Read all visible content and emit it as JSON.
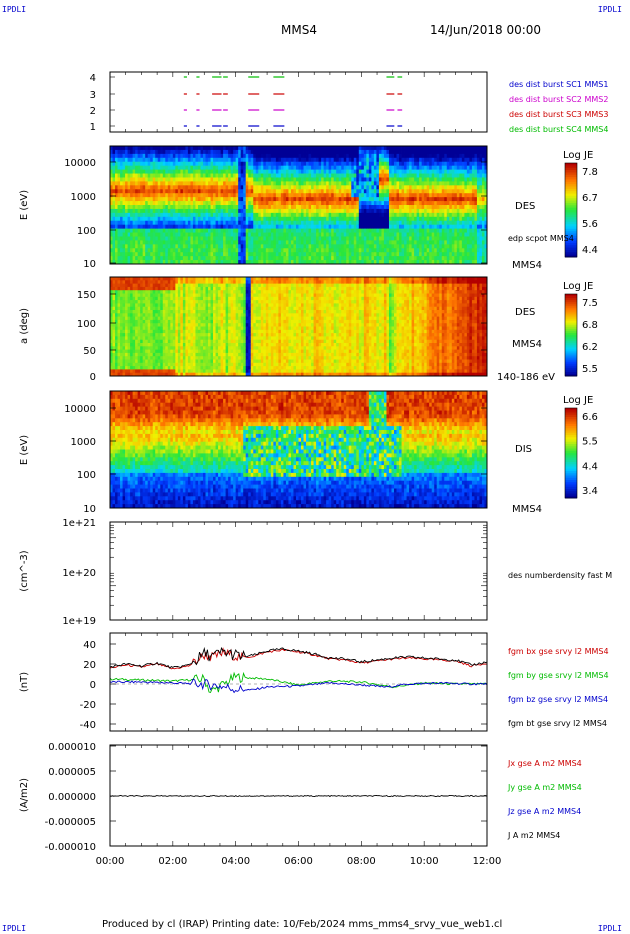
{
  "corner_label": "IPDLI",
  "header": {
    "spacecraft": "MMS4",
    "datetime": "14/Jun/2018 00:00"
  },
  "footer": "Produced by cl (IRAP)   Printing date: 10/Feb/2024   mms_mms4_srvy_vue_web1.cl",
  "time_axis": {
    "ticks": [
      "00:00",
      "02:00",
      "04:00",
      "06:00",
      "08:00",
      "10:00",
      "12:00"
    ],
    "hours": [
      0,
      2,
      4,
      6,
      8,
      10,
      12
    ]
  },
  "chart_data": [
    {
      "type": "table",
      "name": "burst availability",
      "yticks": [
        "4",
        "3",
        "2",
        "1"
      ],
      "series": [
        {
          "name": "des dist burst SC1 MMS1",
          "color": "#0000cc",
          "level": 1
        },
        {
          "name": "des dist burst SC2 MMS2",
          "color": "#cc00cc",
          "level": 2
        },
        {
          "name": "des dist burst SC3 MMS3",
          "color": "#cc0000",
          "level": 3
        },
        {
          "name": "des dist burst SC4 MMS4",
          "color": "#00bb00",
          "level": 4
        }
      ],
      "segments_hours": [
        [
          2.35,
          2.45
        ],
        [
          2.75,
          2.85
        ],
        [
          3.25,
          3.55
        ],
        [
          3.6,
          3.75
        ],
        [
          4.4,
          4.75
        ],
        [
          5.2,
          5.55
        ],
        [
          8.8,
          9.05
        ],
        [
          9.15,
          9.3
        ]
      ]
    },
    {
      "type": "heatmap",
      "name": "DES energy spectrogram",
      "ylabel": "E (eV)",
      "yticks": [
        "10000",
        "1000",
        "100",
        "10"
      ],
      "label_right": "DES",
      "overlay_label": "edp scpot MMS4",
      "sc_label": "MMS4",
      "colorbar": {
        "title": "Log JE",
        "ticks": [
          "7.8",
          "6.7",
          "5.6",
          "4.4"
        ]
      }
    },
    {
      "type": "heatmap",
      "name": "DES pitch angle",
      "ylabel": "a (deg)",
      "yticks": [
        "150",
        "100",
        "50",
        "0"
      ],
      "label_right": "DES",
      "sc_label": "MMS4",
      "energy_range": "140-186 eV",
      "colorbar": {
        "title": "Log JE",
        "ticks": [
          "7.5",
          "6.8",
          "6.2",
          "5.5"
        ]
      }
    },
    {
      "type": "heatmap",
      "name": "DIS energy spectrogram",
      "ylabel": "E (eV)",
      "yticks": [
        "10000",
        "1000",
        "100",
        "10"
      ],
      "label_right": "DIS",
      "sc_label": "MMS4",
      "colorbar": {
        "title": "Log JE",
        "ticks": [
          "6.6",
          "5.5",
          "4.4",
          "3.4"
        ]
      }
    },
    {
      "type": "line",
      "name": "density",
      "ylabel": "(cm^-3)",
      "yticks": [
        "1e+21",
        "1e+20",
        "1e+19"
      ],
      "legend": [
        "des numberdensity fast M"
      ]
    },
    {
      "type": "line",
      "name": "magnetic field",
      "ylabel": "(nT)",
      "yticks": [
        "40",
        "20",
        "0",
        "-20",
        "-40"
      ],
      "ylim": [
        -50,
        50
      ],
      "series": [
        {
          "name": "fgm bx gse srvy l2 MMS4",
          "color": "#cc0000"
        },
        {
          "name": "fgm by gse srvy l2 MMS4",
          "color": "#00bb00"
        },
        {
          "name": "fgm bz gse srvy l2 MMS4",
          "color": "#0000cc"
        },
        {
          "name": "fgm bt gse srvy l2 MMS4",
          "color": "#000000"
        }
      ],
      "bt_points": [
        [
          0,
          17
        ],
        [
          0.5,
          20
        ],
        [
          1,
          18
        ],
        [
          1.5,
          21
        ],
        [
          2,
          16
        ],
        [
          2.5,
          19
        ],
        [
          2.8,
          25
        ],
        [
          3.0,
          30
        ],
        [
          3.3,
          28
        ],
        [
          3.6,
          32
        ],
        [
          3.9,
          30
        ],
        [
          4.2,
          27
        ],
        [
          4.6,
          29
        ],
        [
          5.0,
          33
        ],
        [
          5.5,
          35
        ],
        [
          6.0,
          33
        ],
        [
          6.5,
          30
        ],
        [
          7.0,
          26
        ],
        [
          7.5,
          25
        ],
        [
          8.0,
          22
        ],
        [
          8.5,
          24
        ],
        [
          9.0,
          26
        ],
        [
          9.5,
          27
        ],
        [
          10.0,
          26
        ],
        [
          10.5,
          25
        ],
        [
          11.0,
          24
        ],
        [
          11.5,
          19
        ],
        [
          12,
          22
        ]
      ],
      "by_points": [
        [
          0,
          5
        ],
        [
          1,
          4
        ],
        [
          2,
          3
        ],
        [
          3,
          5
        ],
        [
          3.2,
          -8
        ],
        [
          4,
          7
        ],
        [
          5,
          5
        ],
        [
          6,
          -1
        ],
        [
          7,
          3
        ],
        [
          8,
          2
        ],
        [
          9,
          -3
        ],
        [
          10,
          1
        ],
        [
          11,
          0
        ],
        [
          12,
          0
        ]
      ],
      "bz_points": [
        [
          0,
          2
        ],
        [
          1,
          2
        ],
        [
          2,
          1
        ],
        [
          3,
          0
        ],
        [
          3.5,
          -2
        ],
        [
          4,
          -5
        ],
        [
          4.5,
          -6
        ],
        [
          5,
          -3
        ],
        [
          6,
          -2
        ],
        [
          7,
          1
        ],
        [
          8,
          -1
        ],
        [
          8.8,
          -3
        ],
        [
          9.5,
          0
        ],
        [
          10.5,
          1
        ],
        [
          11.5,
          0
        ],
        [
          12,
          0
        ]
      ]
    },
    {
      "type": "line",
      "name": "current density",
      "ylabel": "(A/m2)",
      "yticks": [
        "0.000010",
        "0.000005",
        "0.000000",
        "-0.000005",
        "-0.000010"
      ],
      "ylim": [
        -1e-05,
        1e-05
      ],
      "series": [
        {
          "name": "Jx gse A m2 MMS4",
          "color": "#cc0000"
        },
        {
          "name": "Jy gse A m2 MMS4",
          "color": "#00bb00"
        },
        {
          "name": "Jz gse A m2 MMS4",
          "color": "#0000cc"
        },
        {
          "name": "J A m2 MMS4",
          "color": "#000000"
        }
      ]
    }
  ]
}
